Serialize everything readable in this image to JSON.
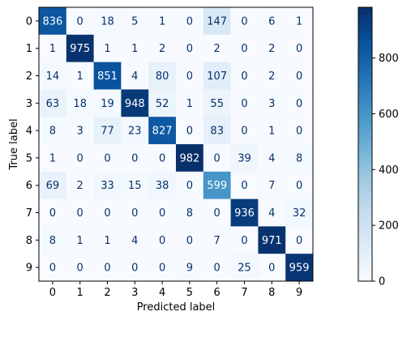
{
  "chart_data": {
    "type": "heatmap",
    "xlabel": "Predicted label",
    "ylabel": "True label",
    "x_categories": [
      "0",
      "1",
      "2",
      "3",
      "4",
      "5",
      "6",
      "7",
      "8",
      "9"
    ],
    "y_categories": [
      "0",
      "1",
      "2",
      "3",
      "4",
      "5",
      "6",
      "7",
      "8",
      "9"
    ],
    "matrix": [
      [
        836,
        0,
        18,
        5,
        1,
        0,
        147,
        0,
        6,
        1
      ],
      [
        1,
        975,
        1,
        1,
        2,
        0,
        2,
        0,
        2,
        0
      ],
      [
        14,
        1,
        851,
        4,
        80,
        0,
        107,
        0,
        2,
        0
      ],
      [
        63,
        18,
        19,
        948,
        52,
        1,
        55,
        0,
        3,
        0
      ],
      [
        8,
        3,
        77,
        23,
        827,
        0,
        83,
        0,
        1,
        0
      ],
      [
        1,
        0,
        0,
        0,
        0,
        982,
        0,
        39,
        4,
        8
      ],
      [
        69,
        2,
        33,
        15,
        38,
        0,
        599,
        0,
        7,
        0
      ],
      [
        0,
        0,
        0,
        0,
        0,
        8,
        0,
        936,
        4,
        32
      ],
      [
        8,
        1,
        1,
        4,
        0,
        0,
        7,
        0,
        971,
        0
      ],
      [
        0,
        0,
        0,
        0,
        0,
        9,
        0,
        25,
        0,
        959
      ]
    ],
    "colormap": "Blues",
    "colorbar": {
      "range": [
        0,
        982
      ],
      "ticks": [
        "0",
        "200",
        "400",
        "600",
        "800"
      ]
    },
    "grid": false
  }
}
